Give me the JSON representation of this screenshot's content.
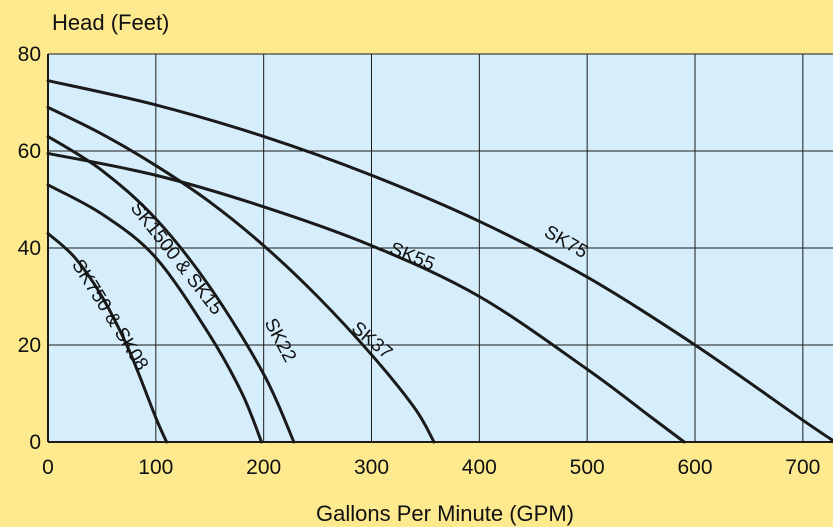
{
  "chart_data": {
    "type": "line",
    "title": "",
    "xlabel": "Gallons Per Minute (GPM)",
    "ylabel": "Head (Feet)",
    "xlim": [
      0,
      730
    ],
    "ylim": [
      0,
      80
    ],
    "x_ticks": [
      0,
      100,
      200,
      300,
      400,
      500,
      600,
      700
    ],
    "y_ticks": [
      0,
      20,
      40,
      60,
      80
    ],
    "grid": true,
    "colors": {
      "background": "#fde98e",
      "plot_area": "#d6eefb",
      "grid": "#1a1a1a",
      "curve": "#1a1a1a"
    },
    "series": [
      {
        "name": "SK750 & SK08",
        "x": [
          0,
          25,
          50,
          75,
          100,
          110
        ],
        "y": [
          43,
          38,
          30,
          19,
          5,
          0
        ]
      },
      {
        "name": "SK1500 & SK15",
        "x": [
          0,
          50,
          100,
          150,
          180,
          198
        ],
        "y": [
          53,
          47,
          38,
          22,
          10,
          0
        ]
      },
      {
        "name": "SK22",
        "x": [
          0,
          50,
          100,
          150,
          200,
          228
        ],
        "y": [
          63,
          56,
          46,
          32,
          14,
          0
        ]
      },
      {
        "name": "SK37",
        "x": [
          0,
          50,
          100,
          150,
          200,
          250,
          300,
          340,
          358
        ],
        "y": [
          69,
          63.5,
          57,
          49.5,
          40.5,
          30,
          18,
          7,
          0
        ]
      },
      {
        "name": "SK55",
        "x": [
          0,
          100,
          200,
          300,
          400,
          500,
          560,
          590
        ],
        "y": [
          59.5,
          55,
          48.5,
          40.5,
          30,
          15,
          5,
          0
        ]
      },
      {
        "name": "SK75",
        "x": [
          0,
          100,
          200,
          300,
          400,
          500,
          600,
          700,
          730
        ],
        "y": [
          74.5,
          69.5,
          63,
          55,
          45.5,
          34,
          20,
          4.5,
          0
        ]
      }
    ]
  }
}
